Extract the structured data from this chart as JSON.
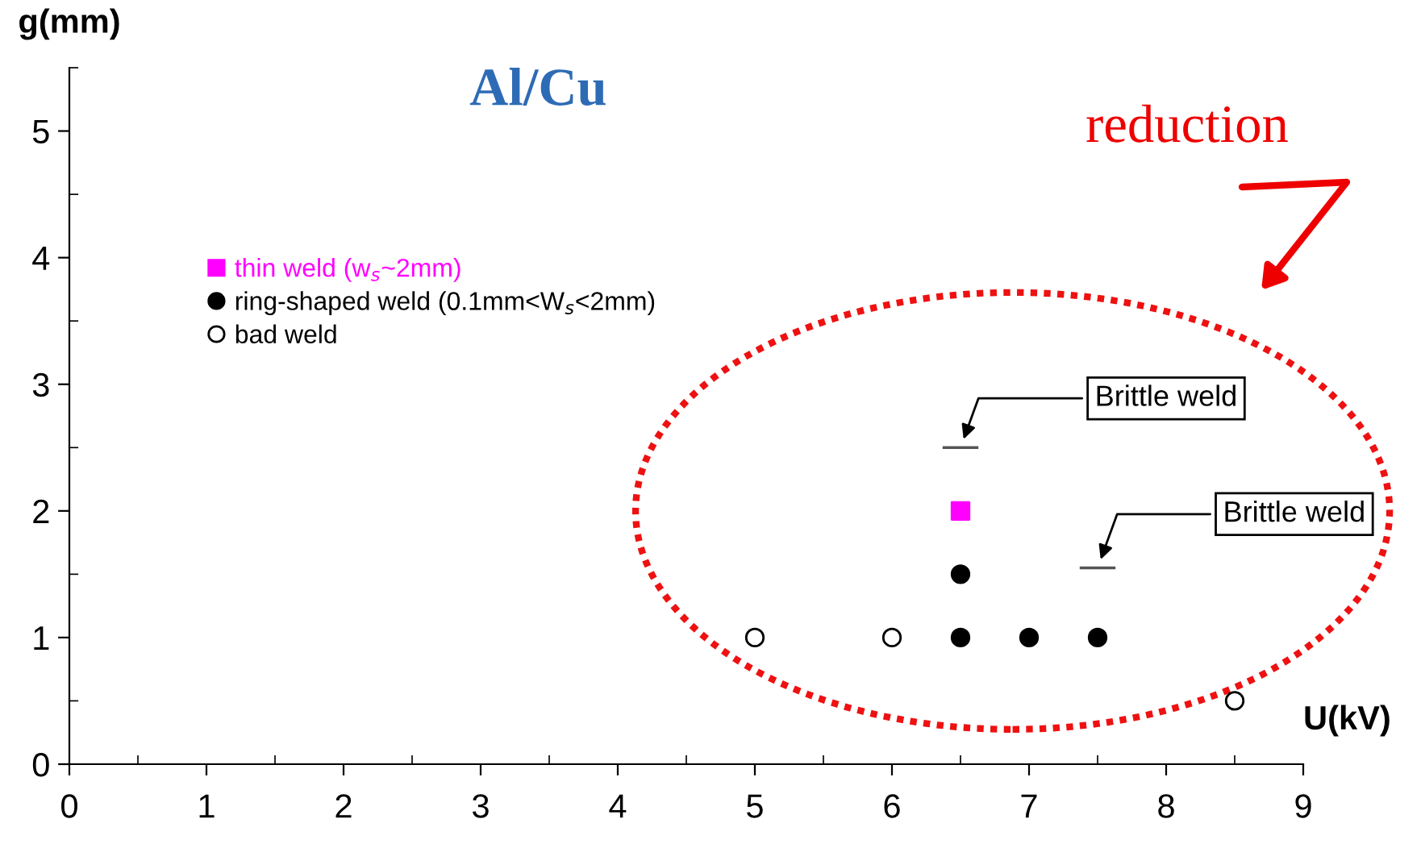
{
  "chart_data": {
    "type": "scatter",
    "title": "Al/Cu",
    "xlabel": "U(kV)",
    "ylabel": "g(mm)",
    "xlim": [
      0,
      9
    ],
    "xticks": [
      0,
      1,
      2,
      3,
      4,
      5,
      6,
      7,
      8,
      9
    ],
    "ylim": [
      0,
      5.5
    ],
    "yticks": [
      0,
      1,
      2,
      3,
      4,
      5
    ],
    "grid": false,
    "legend": "top left",
    "series": [
      {
        "name": "thin weld (w$_{s}$~2mm)",
        "color": "#ff00ff",
        "marker": "square",
        "x": [
          6.5
        ],
        "values": [
          2
        ]
      },
      {
        "name": "ring-shaped weld (0.1mm<W$_{s}$<2mm)",
        "color": "#000000",
        "marker": "circle",
        "x": [
          6.5,
          6.5,
          7,
          7.5
        ],
        "values": [
          1.5,
          1,
          1,
          1
        ]
      },
      {
        "name": "bad weld",
        "color": "#ffffff",
        "marker": "circle",
        "x": [
          5,
          6,
          8.5
        ],
        "values": [
          1,
          1,
          0.5
        ]
      },
      {
        "type": "line",
        "color": "#555555",
        "marker": "none",
        "x": [
          6.38,
          6.62
        ],
        "values": [
          2.5,
          2.5
        ]
      },
      {
        "type": "line",
        "color": "#555555",
        "marker": "none",
        "x": [
          7.38,
          7.62
        ],
        "values": [
          1.55,
          1.55
        ]
      }
    ],
    "annotations": [
      "Brittle weld",
      "Brittle weld",
      "reduction"
    ]
  }
}
